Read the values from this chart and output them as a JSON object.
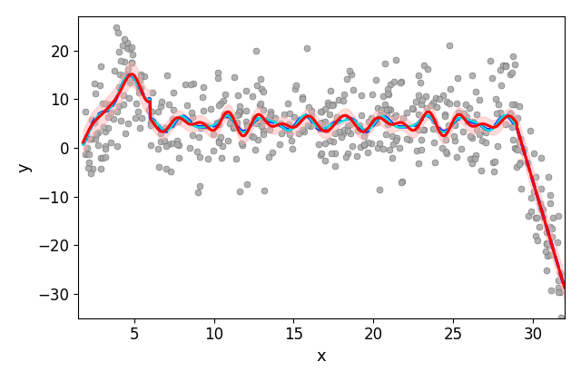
{
  "title": "",
  "xlabel": "x",
  "ylabel": "y",
  "xlim": [
    1.5,
    32
  ],
  "ylim": [
    -35,
    27
  ],
  "seed": 42,
  "n_points": 500,
  "background_color": "#ffffff",
  "scatter_color": "#aaaaaa",
  "scatter_edgecolor": "#666666",
  "scatter_size": 25,
  "red_line_color": "#ff0000",
  "cyan_line_color": "#00dddd",
  "blue_dashed_color": "#0000ff",
  "pink_fill_color": "#ffb0b0",
  "pink_fill_alpha": 0.45,
  "red_lw": 2.2,
  "cyan_lw": 1.8,
  "blue_dashed_lw": 2.5,
  "figsize": [
    6.4,
    4.2
  ],
  "dpi": 100
}
